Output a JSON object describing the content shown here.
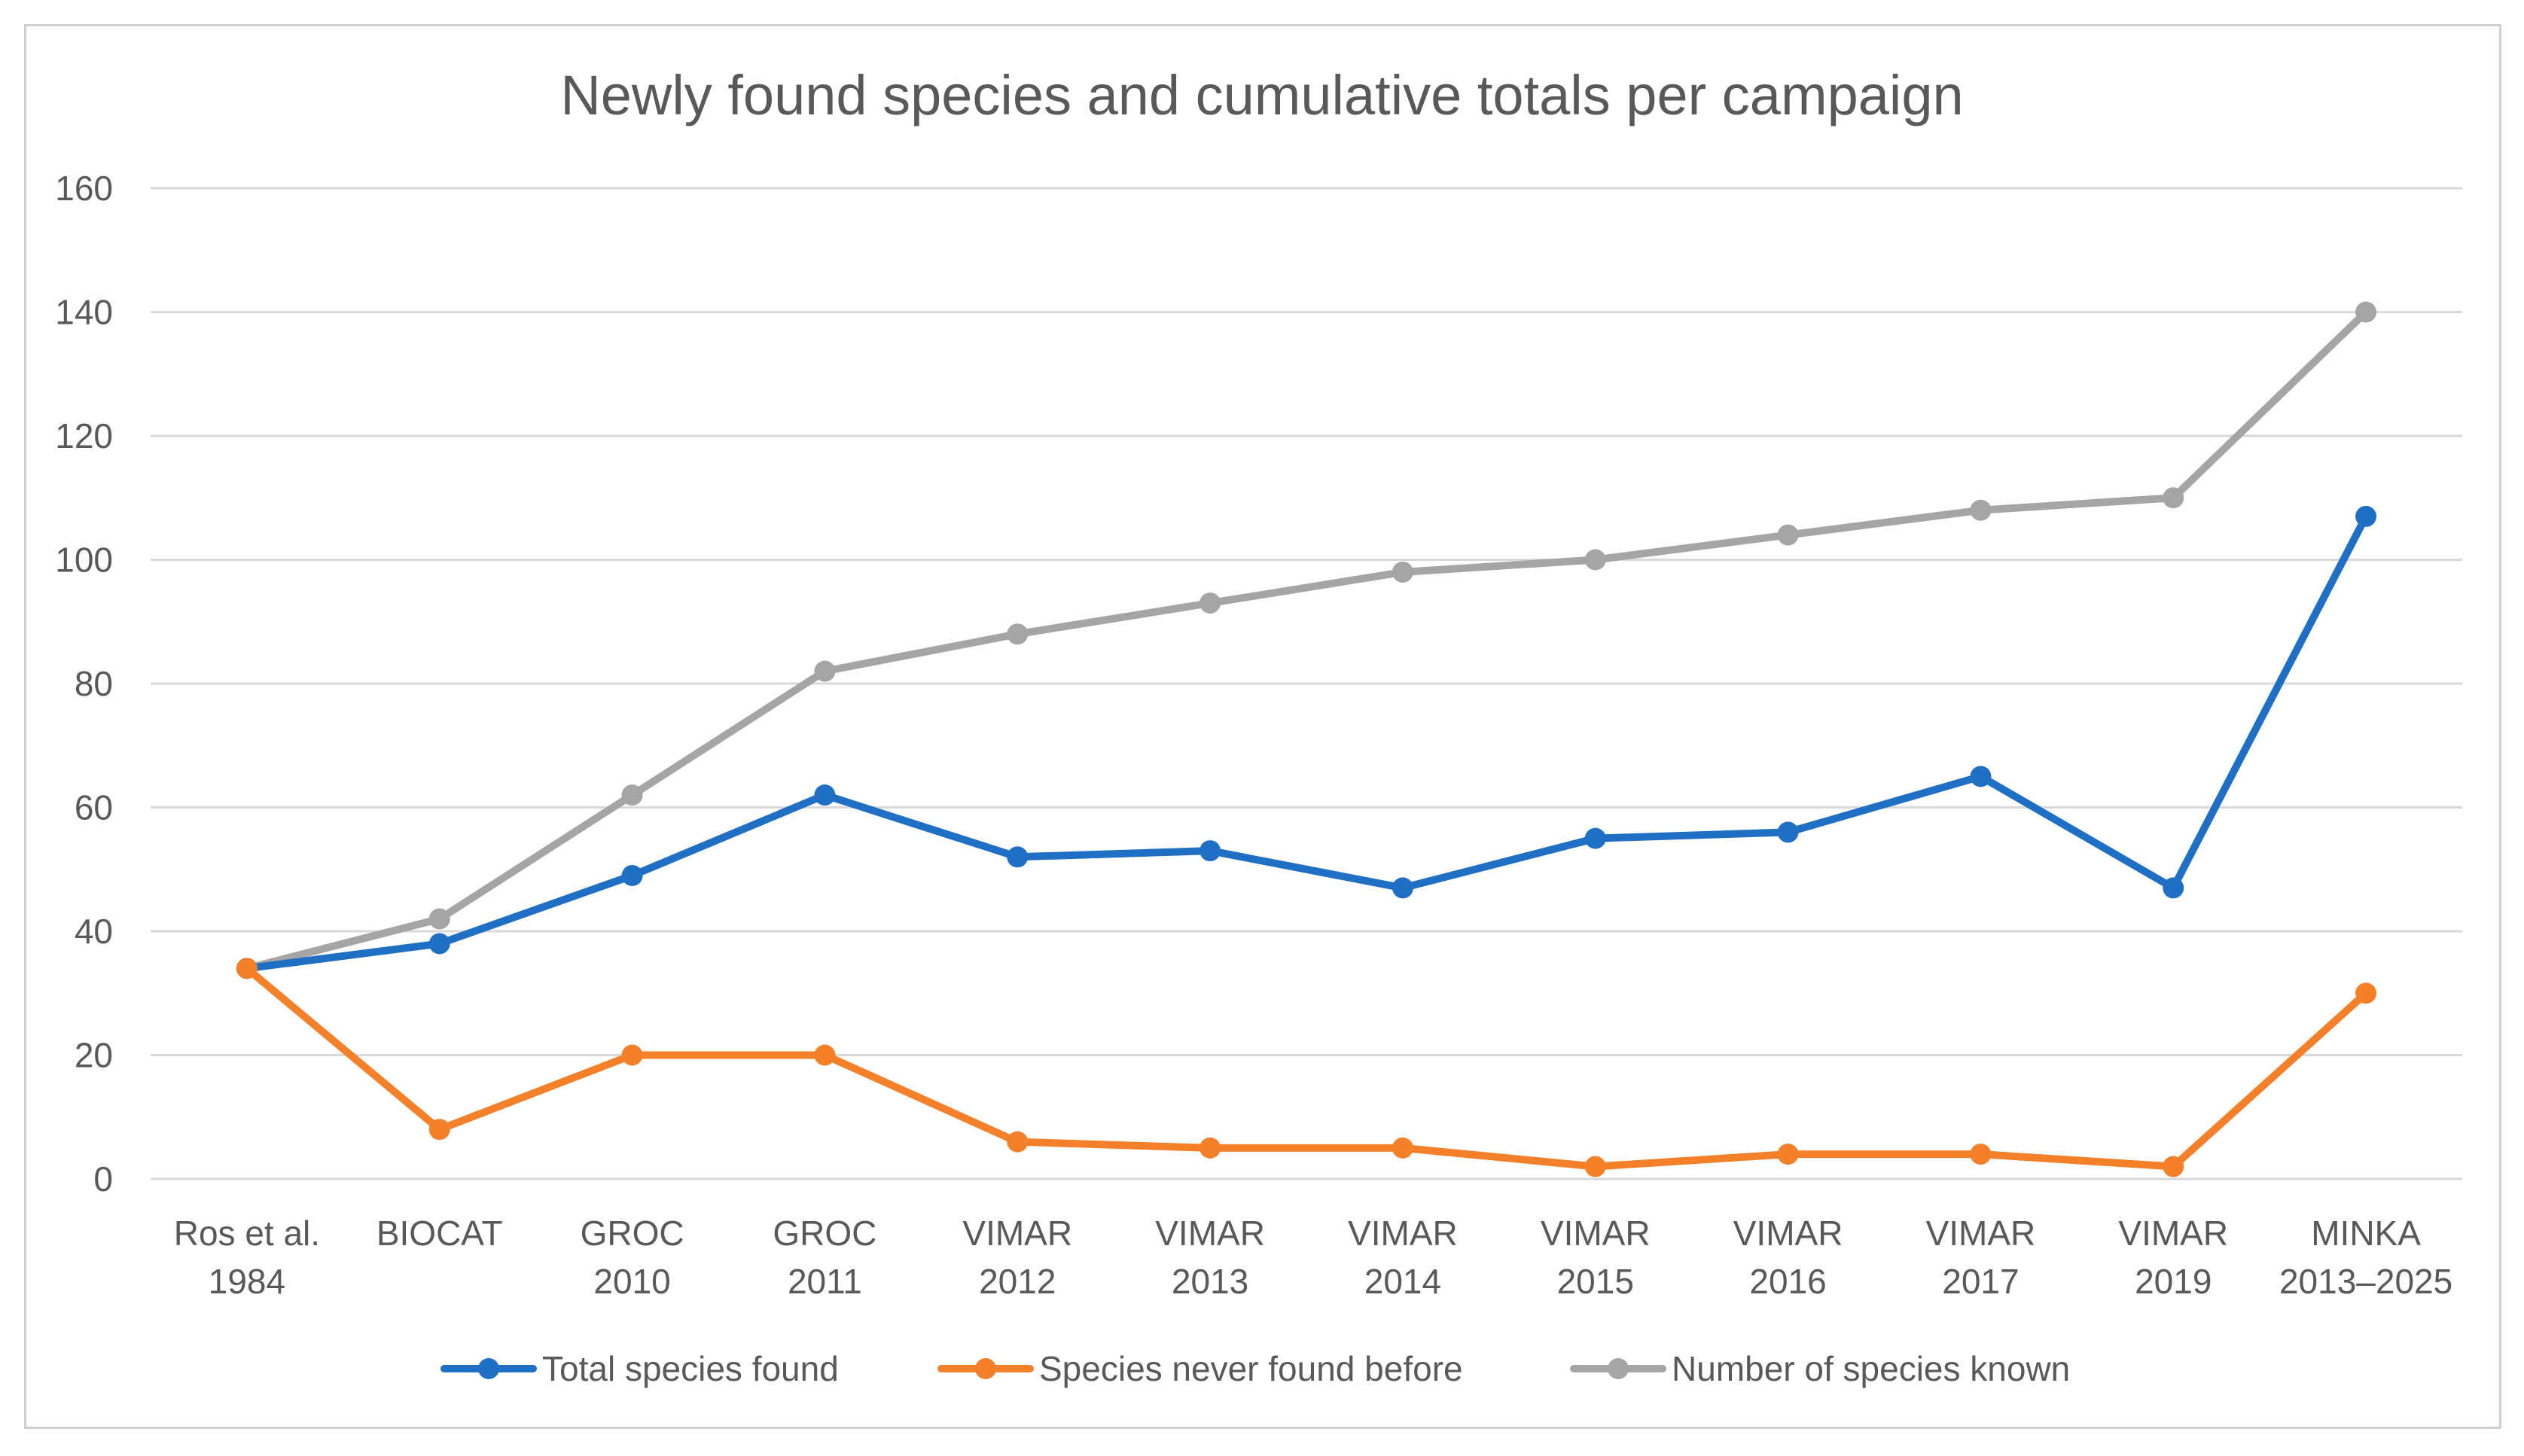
{
  "chart_data": {
    "type": "line",
    "title": "Newly found species and cumulative totals per campaign",
    "xlabel": "",
    "ylabel": "",
    "ylim": [
      0,
      160
    ],
    "yticks": [
      0,
      20,
      40,
      60,
      80,
      100,
      120,
      140,
      160
    ],
    "grid": true,
    "legend_position": "bottom",
    "categories": [
      [
        "Ros et al.",
        "1984"
      ],
      [
        "BIOCAT"
      ],
      [
        "GROC",
        "2010"
      ],
      [
        "GROC",
        "2011"
      ],
      [
        "VIMAR",
        "2012"
      ],
      [
        "VIMAR",
        "2013"
      ],
      [
        "VIMAR",
        "2014"
      ],
      [
        "VIMAR",
        "2015"
      ],
      [
        "VIMAR",
        "2016"
      ],
      [
        "VIMAR",
        "2017"
      ],
      [
        "VIMAR",
        "2019"
      ],
      [
        "MINKA",
        "2013–2025"
      ]
    ],
    "series": [
      {
        "name": "Total species found",
        "color": "#1f6fc5",
        "values": [
          34,
          38,
          49,
          62,
          52,
          53,
          47,
          55,
          56,
          65,
          47,
          107
        ]
      },
      {
        "name": "Species never found before",
        "color": "#f5802a",
        "values": [
          34,
          8,
          20,
          20,
          6,
          5,
          5,
          2,
          4,
          4,
          2,
          30
        ]
      },
      {
        "name": "Number of species known",
        "color": "#a5a5a5",
        "values": [
          34,
          42,
          62,
          82,
          88,
          93,
          98,
          100,
          104,
          108,
          110,
          140
        ]
      }
    ]
  }
}
